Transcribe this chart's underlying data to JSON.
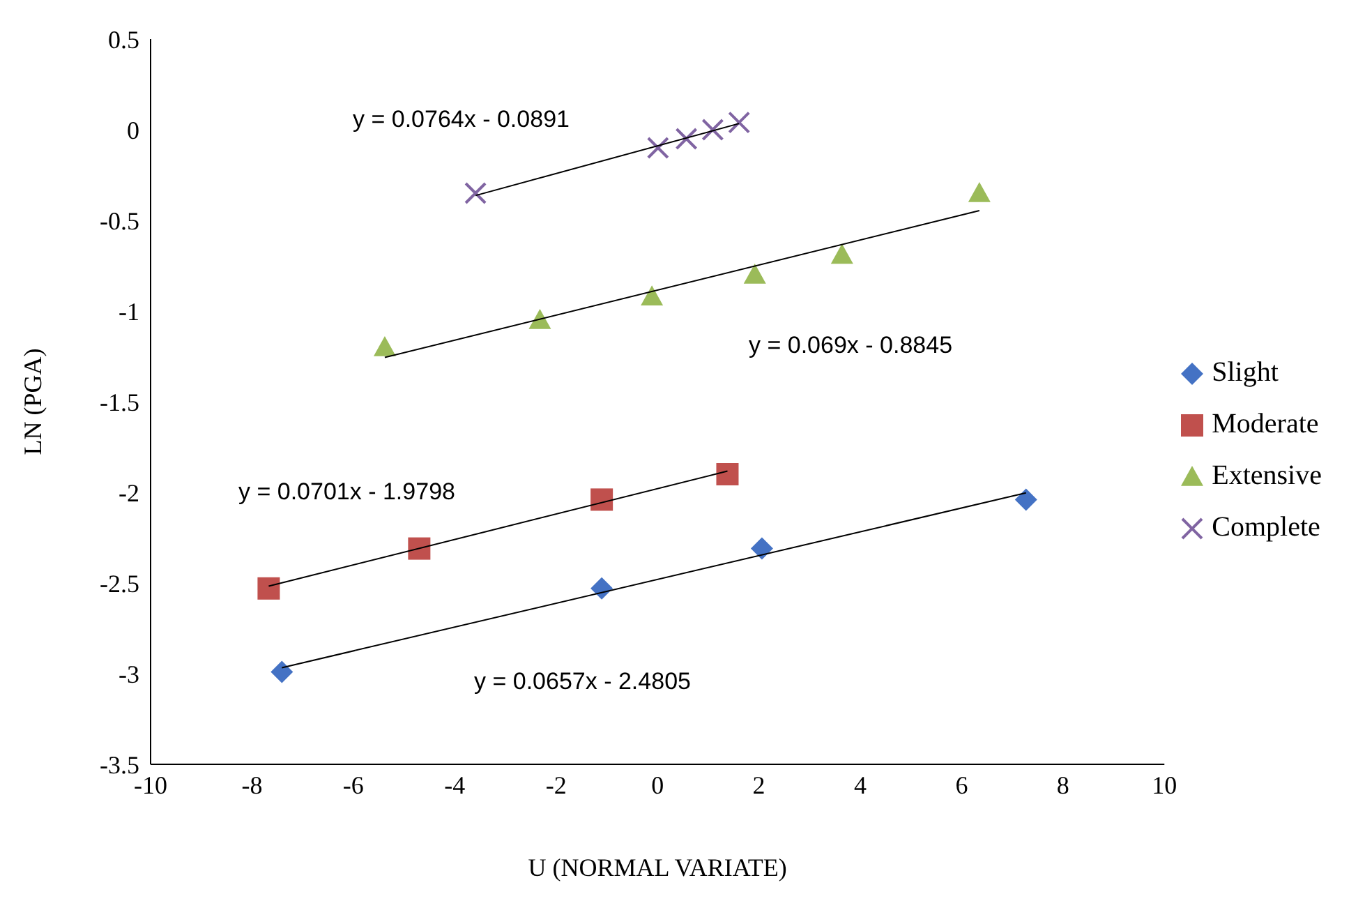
{
  "chart_data": {
    "type": "scatter",
    "xlabel": "U (NORMAL  VARIATE)",
    "ylabel": "LN (PGA)",
    "xlim": [
      -10,
      10
    ],
    "xticks": [
      -10,
      -8,
      -6,
      -4,
      -2,
      0,
      2,
      4,
      6,
      8,
      10
    ],
    "ylim": [
      -3.5,
      0.5
    ],
    "yticks": [
      -3.5,
      -3,
      -2.5,
      -2,
      -1.5,
      -1,
      -0.5,
      0,
      0.5
    ],
    "grid": false,
    "legend": "right",
    "series": [
      {
        "name": "Slight",
        "color": "#4472c4",
        "marker": "diamond",
        "x": [
          -7.41,
          -1.1,
          2.06,
          7.27
        ],
        "values": [
          -2.99,
          -2.53,
          -2.31,
          -2.04
        ]
      },
      {
        "name": "Moderate",
        "color": "#c0504d",
        "marker": "square",
        "x": [
          -7.67,
          -4.7,
          -1.1,
          1.38
        ],
        "values": [
          -2.53,
          -2.31,
          -2.04,
          -1.9
        ]
      },
      {
        "name": "Extensive",
        "color": "#9bbb59",
        "marker": "triangle",
        "x": [
          -5.38,
          -2.32,
          -0.11,
          1.92,
          3.64,
          6.35
        ],
        "values": [
          -1.2,
          -1.05,
          -0.92,
          -0.8,
          -0.69,
          -0.35
        ]
      },
      {
        "name": "Complete",
        "color": "#8064a2",
        "marker": "cross",
        "x": [
          -3.59,
          0.01,
          0.57,
          1.09,
          1.61
        ],
        "values": [
          -0.35,
          -0.1,
          -0.05,
          0,
          0.04
        ]
      },
      {
        "type": "line",
        "color": "#000000",
        "marker": "none",
        "x": [
          -7.41,
          7.27
        ],
        "values": [
          -2.967,
          -2.003
        ]
      },
      {
        "type": "line",
        "color": "#000000",
        "marker": "none",
        "x": [
          -7.67,
          1.38
        ],
        "values": [
          -2.517,
          -1.883
        ]
      },
      {
        "type": "line",
        "color": "#000000",
        "marker": "none",
        "x": [
          -5.38,
          6.35
        ],
        "values": [
          -1.256,
          -0.446
        ]
      },
      {
        "type": "line",
        "color": "#000000",
        "marker": "none",
        "x": [
          -3.59,
          1.61
        ],
        "values": [
          -0.363,
          0.034
        ]
      }
    ],
    "annotations": [
      "y = 0.0764x - 0.0891",
      "y = 0.069x - 0.8845",
      "y = 0.0701x - 1.9798",
      "y = 0.0657x - 2.4805"
    ]
  }
}
